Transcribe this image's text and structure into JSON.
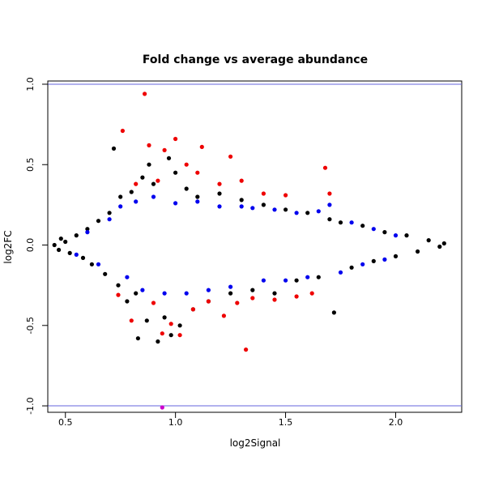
{
  "chart_data": {
    "type": "scatter",
    "title": "Fold change vs average abundance",
    "xlabel": "log2Signal",
    "ylabel": "log2FC",
    "xlim": [
      0.42,
      2.3
    ],
    "ylim": [
      -1.04,
      1.02
    ],
    "xticks": [
      0.5,
      1.0,
      1.5,
      2.0
    ],
    "xtick_labels": [
      "0.5",
      "1.0",
      "1.5",
      "2.0"
    ],
    "yticks": [
      -1.0,
      -0.5,
      0.0,
      0.5,
      1.0
    ],
    "ytick_labels": [
      "-1.0",
      "-0.5",
      "0.0",
      "0.5",
      "1.0"
    ],
    "grid": false,
    "reference_lines": [
      {
        "axis": "y",
        "value": 1.0,
        "color": "#6666dd"
      },
      {
        "axis": "y",
        "value": -1.0,
        "color": "#6666dd"
      }
    ],
    "series": [
      {
        "color": "#000000",
        "points": [
          [
            0.45,
            0.0
          ],
          [
            0.47,
            -0.03
          ],
          [
            0.48,
            0.04
          ],
          [
            0.5,
            0.02
          ],
          [
            0.52,
            -0.05
          ],
          [
            0.55,
            0.06
          ],
          [
            0.58,
            -0.08
          ],
          [
            0.6,
            0.1
          ],
          [
            0.62,
            -0.12
          ],
          [
            0.65,
            0.15
          ],
          [
            0.68,
            -0.18
          ],
          [
            0.7,
            0.2
          ],
          [
            0.72,
            0.6
          ],
          [
            0.74,
            -0.25
          ],
          [
            0.75,
            0.3
          ],
          [
            0.78,
            -0.35
          ],
          [
            0.8,
            0.33
          ],
          [
            0.82,
            -0.3
          ],
          [
            0.83,
            -0.58
          ],
          [
            0.85,
            0.42
          ],
          [
            0.87,
            -0.47
          ],
          [
            0.88,
            0.5
          ],
          [
            0.9,
            0.38
          ],
          [
            0.92,
            -0.6
          ],
          [
            0.95,
            -0.45
          ],
          [
            0.97,
            0.54
          ],
          [
            0.98,
            -0.56
          ],
          [
            1.0,
            0.45
          ],
          [
            1.02,
            -0.5
          ],
          [
            1.05,
            0.35
          ],
          [
            1.08,
            -0.4
          ],
          [
            1.1,
            0.3
          ],
          [
            1.15,
            -0.35
          ],
          [
            1.2,
            0.32
          ],
          [
            1.25,
            -0.3
          ],
          [
            1.3,
            0.28
          ],
          [
            1.35,
            -0.28
          ],
          [
            1.4,
            0.25
          ],
          [
            1.45,
            -0.3
          ],
          [
            1.5,
            0.22
          ],
          [
            1.55,
            -0.22
          ],
          [
            1.6,
            0.2
          ],
          [
            1.65,
            -0.2
          ],
          [
            1.7,
            0.16
          ],
          [
            1.72,
            -0.42
          ],
          [
            1.75,
            0.14
          ],
          [
            1.8,
            -0.14
          ],
          [
            1.85,
            0.12
          ],
          [
            1.9,
            -0.1
          ],
          [
            1.95,
            0.08
          ],
          [
            2.0,
            -0.07
          ],
          [
            2.05,
            0.06
          ],
          [
            2.1,
            -0.04
          ],
          [
            2.15,
            0.03
          ],
          [
            2.2,
            -0.01
          ],
          [
            2.22,
            0.01
          ]
        ]
      },
      {
        "color": "#0000ee",
        "points": [
          [
            0.55,
            -0.06
          ],
          [
            0.6,
            0.08
          ],
          [
            0.65,
            -0.12
          ],
          [
            0.7,
            0.16
          ],
          [
            0.75,
            0.24
          ],
          [
            0.78,
            -0.2
          ],
          [
            0.82,
            0.27
          ],
          [
            0.85,
            -0.28
          ],
          [
            0.9,
            0.3
          ],
          [
            0.95,
            -0.3
          ],
          [
            1.0,
            0.26
          ],
          [
            1.05,
            -0.3
          ],
          [
            1.1,
            0.27
          ],
          [
            1.15,
            -0.28
          ],
          [
            1.2,
            0.24
          ],
          [
            1.25,
            -0.26
          ],
          [
            1.3,
            0.24
          ],
          [
            1.35,
            0.23
          ],
          [
            1.4,
            -0.22
          ],
          [
            1.45,
            0.22
          ],
          [
            1.5,
            -0.22
          ],
          [
            1.55,
            0.2
          ],
          [
            1.6,
            -0.2
          ],
          [
            1.65,
            0.21
          ],
          [
            1.7,
            0.25
          ],
          [
            1.75,
            -0.17
          ],
          [
            1.8,
            0.14
          ],
          [
            1.85,
            -0.12
          ],
          [
            1.9,
            0.1
          ],
          [
            1.95,
            -0.09
          ],
          [
            2.0,
            0.06
          ]
        ]
      },
      {
        "color": "#ee0000",
        "points": [
          [
            0.74,
            -0.31
          ],
          [
            0.76,
            0.71
          ],
          [
            0.8,
            -0.47
          ],
          [
            0.82,
            0.38
          ],
          [
            0.86,
            0.94
          ],
          [
            0.88,
            0.62
          ],
          [
            0.9,
            -0.36
          ],
          [
            0.92,
            0.4
          ],
          [
            0.94,
            -0.55
          ],
          [
            0.95,
            0.59
          ],
          [
            0.98,
            -0.49
          ],
          [
            1.0,
            0.66
          ],
          [
            1.02,
            -0.56
          ],
          [
            1.05,
            0.5
          ],
          [
            1.08,
            -0.4
          ],
          [
            1.1,
            0.45
          ],
          [
            1.12,
            0.61
          ],
          [
            1.15,
            -0.35
          ],
          [
            1.2,
            0.38
          ],
          [
            1.22,
            -0.44
          ],
          [
            1.25,
            0.55
          ],
          [
            1.28,
            -0.36
          ],
          [
            1.3,
            0.4
          ],
          [
            1.35,
            -0.33
          ],
          [
            1.4,
            0.32
          ],
          [
            1.45,
            -0.34
          ],
          [
            1.5,
            0.31
          ],
          [
            1.55,
            -0.32
          ],
          [
            1.68,
            0.48
          ],
          [
            1.7,
            0.32
          ],
          [
            1.62,
            -0.3
          ],
          [
            1.32,
            -0.65
          ]
        ]
      },
      {
        "color": "#cc00cc",
        "points": [
          [
            0.94,
            -1.01
          ]
        ]
      }
    ]
  }
}
